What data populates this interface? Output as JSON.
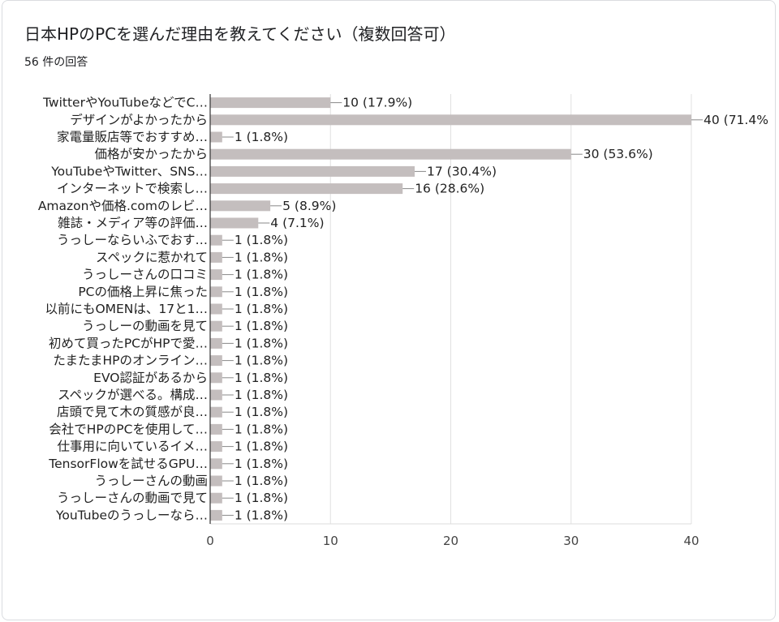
{
  "question": {
    "title": "日本HPのPCを選んだ理由を教えてください（複数回答可）",
    "response_count": "56 件の回答"
  },
  "chart_data": {
    "type": "bar",
    "orientation": "horizontal",
    "categories": [
      "TwitterやYouTubeなどでC…",
      "デザインがよかったから",
      "家電量販店等でおすすめ…",
      "価格が安かったから",
      "YouTubeやTwitter、SNS…",
      "インターネットで検索し…",
      "Amazonや価格.comのレビ…",
      "雑誌・メディア等の評価…",
      "うっしーならいふでおす…",
      "スペックに惹かれて",
      "うっしーさんの口コミ",
      "PCの価格上昇に焦った",
      "以前にもOMENは、17と1…",
      "うっしーの動画を見て",
      "初めて買ったPCがHPで愛…",
      "たまたまHPのオンライン…",
      "EVO認証があるから",
      "スペックが選べる。構成…",
      "店頭で見て木の質感が良…",
      "会社でHPのPCを使用して…",
      "仕事用に向いているイメ…",
      "TensorFlowを試せるGPU…",
      "うっしーさんの動画",
      "うっしーさんの動画で見て",
      "YouTubeのうっしーなら…"
    ],
    "values": [
      10,
      40,
      1,
      30,
      17,
      16,
      5,
      4,
      1,
      1,
      1,
      1,
      1,
      1,
      1,
      1,
      1,
      1,
      1,
      1,
      1,
      1,
      1,
      1,
      1
    ],
    "labels": [
      "10 (17.9%)",
      "40 (71.4%",
      "1 (1.8%)",
      "30 (53.6%)",
      "17 (30.4%)",
      "16 (28.6%)",
      "5 (8.9%)",
      "4 (7.1%)",
      "1 (1.8%)",
      "1 (1.8%)",
      "1 (1.8%)",
      "1 (1.8%)",
      "1 (1.8%)",
      "1 (1.8%)",
      "1 (1.8%)",
      "1 (1.8%)",
      "1 (1.8%)",
      "1 (1.8%)",
      "1 (1.8%)",
      "1 (1.8%)",
      "1 (1.8%)",
      "1 (1.8%)",
      "1 (1.8%)",
      "1 (1.8%)",
      "1 (1.8%)"
    ],
    "xticks": [
      "0",
      "10",
      "20",
      "30",
      "40"
    ],
    "xlim": [
      0,
      40
    ],
    "grid": true,
    "bar_color": "#c4bebe",
    "axis_color": "#333333",
    "grid_color": "#e0e0e0"
  }
}
